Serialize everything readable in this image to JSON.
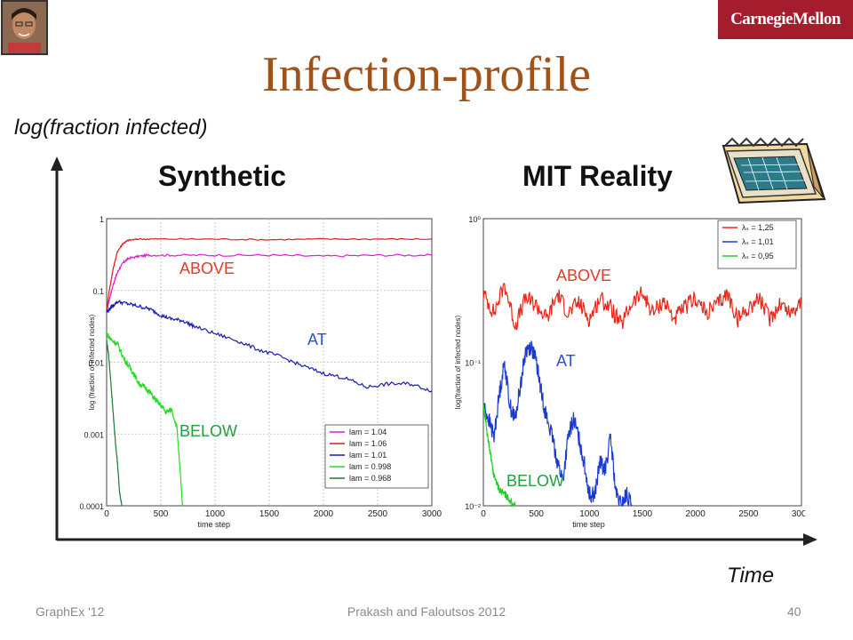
{
  "slide": {
    "title": "Infection-profile",
    "logo_text": "CarnegieMellon",
    "y_axis_title": "log(fraction infected)",
    "x_axis_title": "Time",
    "footer_left": "GraphEx '12",
    "footer_center": "Prakash and Faloutsos 2012",
    "page_number": "40",
    "synthetic_title": "Synthetic",
    "mit_title": "MIT Reality",
    "colors": {
      "title": "#a0521b",
      "logo_bg": "#a51d2d",
      "overlay_red": "#e8382a",
      "overlay_blue": "#3050d0",
      "overlay_green": "#22a040"
    }
  },
  "chart_data": [
    {
      "type": "line",
      "panel": "Synthetic",
      "xlabel": "time step",
      "ylabel": "log (fraction of infected nodes)",
      "x_ticks": [
        "0",
        "500",
        "1000",
        "1500",
        "2000",
        "2500",
        "3000"
      ],
      "y_ticks": [
        "0.0001",
        "0.001",
        "0.01",
        "0.1",
        "1"
      ],
      "xlim": [
        0,
        3000
      ],
      "ylim": [
        0.0001,
        1
      ],
      "yscale": "log",
      "grid": true,
      "legend_placement": "bottom-right",
      "overlay_labels": [
        {
          "text": "ABOVE",
          "color": "#e8382a"
        },
        {
          "text": "AT",
          "color": "#3050d0"
        },
        {
          "text": "BELOW",
          "color": "#22a040"
        }
      ],
      "series": [
        {
          "name": "lam = 1.04",
          "color": "#e01cd0",
          "x": [
            0,
            20,
            60,
            100,
            150,
            200,
            300,
            400,
            600,
            1000,
            1500,
            2000,
            2500,
            3000
          ],
          "y": [
            0.05,
            0.07,
            0.12,
            0.18,
            0.24,
            0.28,
            0.3,
            0.31,
            0.31,
            0.31,
            0.31,
            0.3,
            0.31,
            0.31
          ]
        },
        {
          "name": "lam = 1.06",
          "color": "#e01a1a",
          "x": [
            0,
            20,
            60,
            100,
            150,
            200,
            300,
            500,
            1000,
            1500,
            2000,
            2500,
            3000
          ],
          "y": [
            0.05,
            0.09,
            0.2,
            0.35,
            0.45,
            0.5,
            0.52,
            0.52,
            0.52,
            0.51,
            0.52,
            0.52,
            0.52
          ]
        },
        {
          "name": "lam = 1.01",
          "color": "#1a1ab4",
          "x": [
            0,
            50,
            100,
            200,
            300,
            400,
            500,
            600,
            700,
            800,
            1000,
            1200,
            1400,
            1600,
            1800,
            2000,
            2200,
            2400,
            2600,
            2800,
            3000
          ],
          "y": [
            0.05,
            0.06,
            0.07,
            0.065,
            0.06,
            0.055,
            0.045,
            0.04,
            0.038,
            0.032,
            0.025,
            0.02,
            0.015,
            0.012,
            0.009,
            0.007,
            0.006,
            0.0045,
            0.005,
            0.005,
            0.004
          ]
        },
        {
          "name": "lam = 0.998",
          "color": "#22dd22",
          "x": [
            0,
            50,
            100,
            150,
            200,
            250,
            300,
            350,
            400,
            450,
            500,
            550,
            600,
            650,
            700
          ],
          "y": [
            0.025,
            0.02,
            0.018,
            0.012,
            0.009,
            0.007,
            0.005,
            0.0045,
            0.0038,
            0.003,
            0.0025,
            0.002,
            0.0022,
            0.0012,
            0.0001
          ]
        },
        {
          "name": "lam = 0.968",
          "color": "#1a7a3a",
          "x": [
            0,
            20,
            40,
            60,
            80,
            100,
            120,
            140
          ],
          "y": [
            0.02,
            0.012,
            0.005,
            0.002,
            0.0008,
            0.0004,
            0.00015,
            0.0001
          ]
        }
      ]
    },
    {
      "type": "line",
      "panel": "MIT Reality",
      "xlabel": "time step",
      "ylabel": "log(fraction of infected nodes)",
      "x_ticks": [
        "0",
        "500",
        "1000",
        "1500",
        "2000",
        "2500",
        "3000"
      ],
      "y_ticks": [
        "10⁻²",
        "10⁻¹",
        "10⁰"
      ],
      "xlim": [
        0,
        3000
      ],
      "ylim": [
        0.01,
        1
      ],
      "yscale": "log",
      "grid": false,
      "legend_placement": "top-right",
      "overlay_labels": [
        {
          "text": "ABOVE",
          "color": "#e8382a"
        },
        {
          "text": "AT",
          "color": "#3050d0"
        },
        {
          "text": "BELOW",
          "color": "#22a040"
        }
      ],
      "series": [
        {
          "name": "λₛ = 1,25",
          "color": "#e8281a",
          "x": [
            0,
            100,
            200,
            300,
            400,
            500,
            600,
            700,
            800,
            900,
            1000,
            1100,
            1200,
            1300,
            1400,
            1500,
            1600,
            1700,
            1800,
            1900,
            2000,
            2100,
            2200,
            2300,
            2400,
            2500,
            2600,
            2700,
            2800,
            2900,
            3000
          ],
          "y": [
            0.3,
            0.22,
            0.35,
            0.18,
            0.28,
            0.25,
            0.2,
            0.3,
            0.22,
            0.26,
            0.2,
            0.28,
            0.24,
            0.18,
            0.26,
            0.3,
            0.22,
            0.27,
            0.2,
            0.24,
            0.28,
            0.22,
            0.25,
            0.3,
            0.2,
            0.24,
            0.28,
            0.2,
            0.26,
            0.22,
            0.27
          ]
        },
        {
          "name": "λₛ = 1,01",
          "color": "#1a3ad0",
          "x": [
            0,
            50,
            100,
            150,
            200,
            250,
            300,
            350,
            400,
            450,
            500,
            550,
            600,
            650,
            700,
            750,
            800,
            850,
            900,
            950,
            1000,
            1050,
            1100,
            1150,
            1200,
            1250,
            1300,
            1350,
            1400
          ],
          "y": [
            0.05,
            0.04,
            0.03,
            0.06,
            0.1,
            0.05,
            0.04,
            0.07,
            0.12,
            0.13,
            0.1,
            0.06,
            0.04,
            0.03,
            0.02,
            0.015,
            0.03,
            0.04,
            0.03,
            0.02,
            0.012,
            0.012,
            0.02,
            0.018,
            0.03,
            0.012,
            0.01,
            0.012,
            0.01
          ]
        },
        {
          "name": "λₛ = 0,95",
          "color": "#22cc22",
          "x": [
            0,
            20,
            40,
            60,
            80,
            100,
            150,
            200,
            250,
            300
          ],
          "y": [
            0.05,
            0.04,
            0.03,
            0.025,
            0.02,
            0.016,
            0.013,
            0.012,
            0.011,
            0.01
          ]
        }
      ]
    }
  ]
}
